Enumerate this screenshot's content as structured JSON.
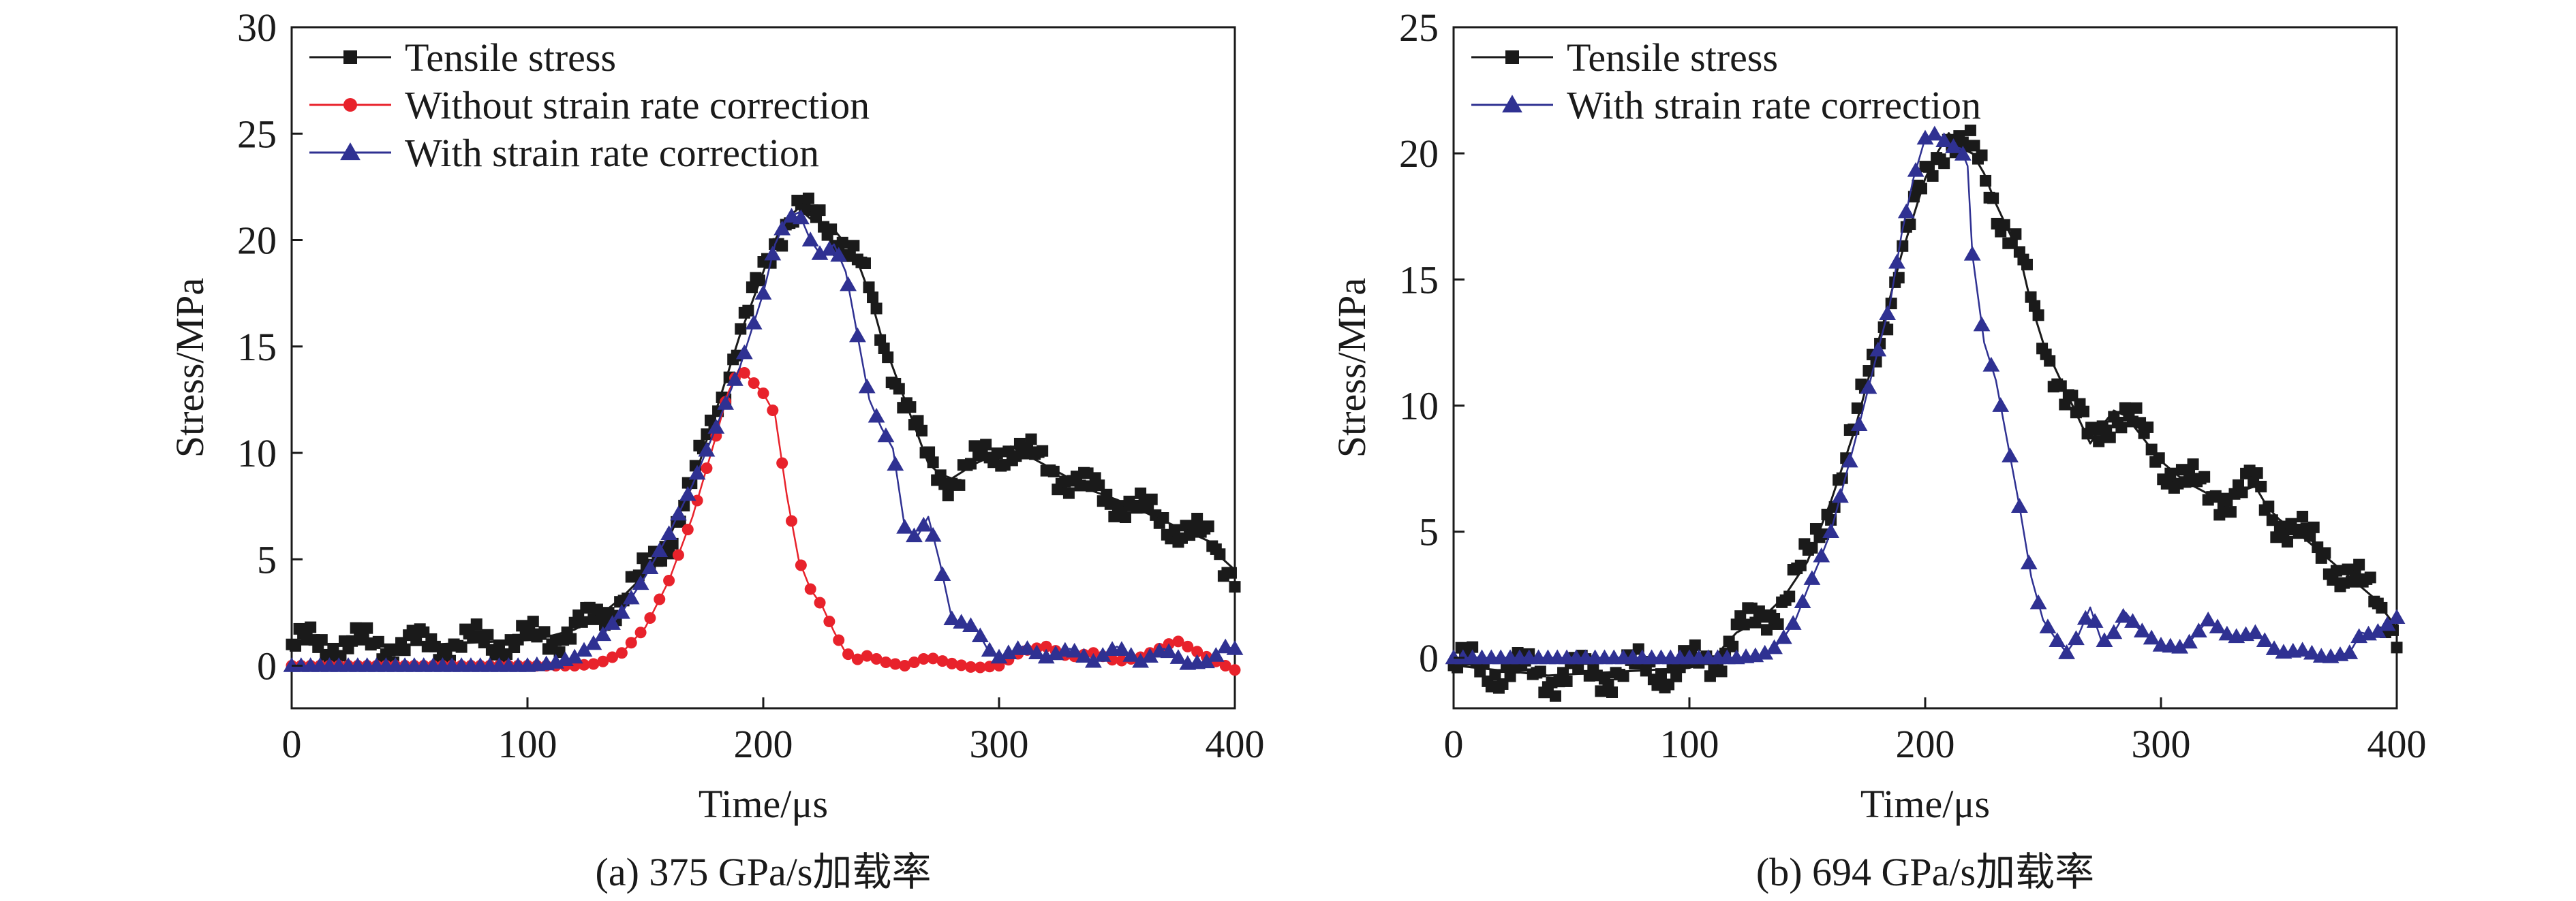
{
  "chart_data": [
    {
      "type": "line",
      "caption": "(a) 375 GPa/s加载率",
      "xlabel": "Time/μs",
      "ylabel": "Stress/MPa",
      "xlim": [
        0,
        400
      ],
      "ylim": [
        -2,
        30
      ],
      "xticks": [
        0,
        100,
        200,
        300,
        400
      ],
      "yticks": [
        0,
        5,
        10,
        15,
        20,
        25,
        30
      ],
      "xtick_labels": [
        "0",
        "100",
        "200",
        "300",
        "400"
      ],
      "ytick_labels": [
        "0",
        "5",
        "10",
        "15",
        "20",
        "25",
        "30"
      ],
      "grid": false,
      "legend_position": "top-left",
      "series": [
        {
          "name": "Tensile stress",
          "color": "#1a1a1a",
          "marker": "square",
          "points": [
            [
              0,
              1.0
            ],
            [
              20,
              1.0
            ],
            [
              40,
              1.0
            ],
            [
              60,
              1.0
            ],
            [
              80,
              1.1
            ],
            [
              100,
              1.2
            ],
            [
              110,
              1.4
            ],
            [
              120,
              1.7
            ],
            [
              130,
              2.3
            ],
            [
              140,
              3.2
            ],
            [
              150,
              4.3
            ],
            [
              160,
              6.0
            ],
            [
              170,
              8.5
            ],
            [
              180,
              12.0
            ],
            [
              190,
              15.5
            ],
            [
              200,
              18.5
            ],
            [
              205,
              20.0
            ],
            [
              210,
              21.0
            ],
            [
              215,
              21.5
            ],
            [
              220,
              21.0
            ],
            [
              225,
              20.8
            ],
            [
              230,
              20.5
            ],
            [
              235,
              19.8
            ],
            [
              240,
              19.0
            ],
            [
              245,
              17.5
            ],
            [
              250,
              15.5
            ],
            [
              255,
              14.0
            ],
            [
              260,
              12.5
            ],
            [
              265,
              11.0
            ],
            [
              270,
              9.5
            ],
            [
              275,
              9.0
            ],
            [
              280,
              8.8
            ],
            [
              290,
              9.5
            ],
            [
              300,
              10.0
            ],
            [
              305,
              10.3
            ],
            [
              310,
              10.0
            ],
            [
              320,
              9.4
            ],
            [
              330,
              8.8
            ],
            [
              340,
              8.2
            ],
            [
              350,
              7.8
            ],
            [
              360,
              7.3
            ],
            [
              370,
              6.8
            ],
            [
              380,
              6.3
            ],
            [
              390,
              5.8
            ],
            [
              395,
              5.0
            ],
            [
              400,
              4.5
            ]
          ]
        },
        {
          "name": "Without strain rate correction",
          "color": "#e8222b",
          "marker": "circle",
          "points": [
            [
              0,
              0
            ],
            [
              50,
              0
            ],
            [
              100,
              0
            ],
            [
              120,
              0
            ],
            [
              130,
              0.1
            ],
            [
              140,
              0.6
            ],
            [
              150,
              1.8
            ],
            [
              160,
              4.0
            ],
            [
              170,
              7.0
            ],
            [
              180,
              10.8
            ],
            [
              185,
              12.8
            ],
            [
              190,
              14.0
            ],
            [
              195,
              13.4
            ],
            [
              200,
              12.8
            ],
            [
              205,
              11.8
            ],
            [
              210,
              8.0
            ],
            [
              215,
              5.0
            ],
            [
              220,
              3.6
            ],
            [
              225,
              2.8
            ],
            [
              230,
              1.6
            ],
            [
              235,
              0.6
            ],
            [
              240,
              0.3
            ],
            [
              245,
              0.5
            ],
            [
              250,
              0.2
            ],
            [
              260,
              0.0
            ],
            [
              270,
              0.4
            ],
            [
              280,
              0.1
            ],
            [
              290,
              -0.1
            ],
            [
              300,
              0.0
            ],
            [
              310,
              0.7
            ],
            [
              320,
              0.9
            ],
            [
              330,
              0.4
            ],
            [
              340,
              0.6
            ],
            [
              350,
              0.2
            ],
            [
              360,
              0.4
            ],
            [
              370,
              0.9
            ],
            [
              375,
              1.2
            ],
            [
              380,
              0.9
            ],
            [
              390,
              0.3
            ],
            [
              400,
              -0.2
            ]
          ]
        },
        {
          "name": "With strain rate correction",
          "color": "#2f3192",
          "marker": "triangle",
          "points": [
            [
              0,
              0
            ],
            [
              50,
              0
            ],
            [
              100,
              0
            ],
            [
              110,
              0.1
            ],
            [
              120,
              0.4
            ],
            [
              130,
              1.2
            ],
            [
              140,
              2.5
            ],
            [
              150,
              4.2
            ],
            [
              160,
              6.2
            ],
            [
              170,
              8.5
            ],
            [
              180,
              11.2
            ],
            [
              190,
              14.0
            ],
            [
              200,
              17.5
            ],
            [
              205,
              19.8
            ],
            [
              210,
              21.0
            ],
            [
              215,
              21.3
            ],
            [
              220,
              20.0
            ],
            [
              225,
              19.2
            ],
            [
              230,
              19.8
            ],
            [
              235,
              18.5
            ],
            [
              240,
              15.5
            ],
            [
              245,
              12.5
            ],
            [
              250,
              11.2
            ],
            [
              255,
              10.2
            ],
            [
              260,
              6.5
            ],
            [
              265,
              6.0
            ],
            [
              270,
              7.0
            ],
            [
              275,
              4.8
            ],
            [
              280,
              2.2
            ],
            [
              290,
              1.8
            ],
            [
              295,
              0.8
            ],
            [
              300,
              0.4
            ],
            [
              310,
              0.9
            ],
            [
              320,
              0.4
            ],
            [
              330,
              0.8
            ],
            [
              340,
              0.2
            ],
            [
              350,
              0.9
            ],
            [
              360,
              0.2
            ],
            [
              370,
              0.8
            ],
            [
              380,
              0.1
            ],
            [
              390,
              0.2
            ],
            [
              395,
              0.9
            ],
            [
              400,
              0.8
            ]
          ]
        }
      ]
    },
    {
      "type": "line",
      "caption": "(b) 694 GPa/s加载率",
      "xlabel": "Time/μs",
      "ylabel": "Stress/MPa",
      "xlim": [
        0,
        400
      ],
      "ylim": [
        -2,
        25
      ],
      "xticks": [
        0,
        100,
        200,
        300,
        400
      ],
      "yticks": [
        0,
        5,
        10,
        15,
        20,
        25
      ],
      "xtick_labels": [
        "0",
        "100",
        "200",
        "300",
        "400"
      ],
      "ytick_labels": [
        "0",
        "5",
        "10",
        "15",
        "20",
        "25"
      ],
      "grid": false,
      "legend_position": "top-left",
      "series": [
        {
          "name": "Tensile stress",
          "color": "#1a1a1a",
          "marker": "square",
          "points": [
            [
              0,
              -0.3
            ],
            [
              20,
              -0.5
            ],
            [
              40,
              -0.7
            ],
            [
              60,
              -0.6
            ],
            [
              80,
              -0.5
            ],
            [
              100,
              -0.4
            ],
            [
              110,
              -0.1
            ],
            [
              115,
              0.5
            ],
            [
              120,
              1.0
            ],
            [
              130,
              1.5
            ],
            [
              140,
              2.4
            ],
            [
              150,
              3.8
            ],
            [
              160,
              6.2
            ],
            [
              170,
              9.0
            ],
            [
              180,
              12.5
            ],
            [
              190,
              16.0
            ],
            [
              200,
              19.0
            ],
            [
              205,
              20.0
            ],
            [
              210,
              20.8
            ],
            [
              215,
              20.2
            ],
            [
              220,
              20.0
            ],
            [
              225,
              19.2
            ],
            [
              230,
              18.0
            ],
            [
              235,
              17.0
            ],
            [
              240,
              16.0
            ],
            [
              245,
              14.0
            ],
            [
              250,
              12.5
            ],
            [
              255,
              11.5
            ],
            [
              260,
              10.5
            ],
            [
              265,
              9.5
            ],
            [
              270,
              8.5
            ],
            [
              275,
              9.2
            ],
            [
              280,
              9.8
            ],
            [
              285,
              9.6
            ],
            [
              290,
              9.0
            ],
            [
              300,
              7.8
            ],
            [
              310,
              7.0
            ],
            [
              320,
              6.5
            ],
            [
              330,
              6.5
            ],
            [
              340,
              6.8
            ],
            [
              345,
              6.0
            ],
            [
              350,
              5.5
            ],
            [
              360,
              4.8
            ],
            [
              370,
              4.0
            ],
            [
              380,
              3.2
            ],
            [
              390,
              2.4
            ],
            [
              400,
              1.2
            ]
          ]
        },
        {
          "name": "With strain rate correction",
          "color": "#2f3192",
          "marker": "triangle",
          "points": [
            [
              0,
              0
            ],
            [
              50,
              0
            ],
            [
              100,
              0
            ],
            [
              110,
              0
            ],
            [
              120,
              0
            ],
            [
              130,
              0.1
            ],
            [
              135,
              0.3
            ],
            [
              140,
              0.8
            ],
            [
              145,
              1.5
            ],
            [
              150,
              2.7
            ],
            [
              155,
              3.8
            ],
            [
              160,
              5.0
            ],
            [
              170,
              8.5
            ],
            [
              180,
              12.2
            ],
            [
              185,
              14.0
            ],
            [
              190,
              16.8
            ],
            [
              195,
              19.0
            ],
            [
              200,
              20.6
            ],
            [
              205,
              20.8
            ],
            [
              210,
              20.3
            ],
            [
              215,
              20.2
            ],
            [
              218,
              19.5
            ],
            [
              220,
              16.0
            ],
            [
              225,
              12.5
            ],
            [
              230,
              11.0
            ],
            [
              235,
              8.5
            ],
            [
              240,
              6.0
            ],
            [
              245,
              3.2
            ],
            [
              250,
              1.5
            ],
            [
              255,
              0.8
            ],
            [
              260,
              0.2
            ],
            [
              265,
              0.9
            ],
            [
              270,
              2.0
            ],
            [
              275,
              0.6
            ],
            [
              280,
              1.0
            ],
            [
              285,
              1.8
            ],
            [
              290,
              1.2
            ],
            [
              300,
              0.5
            ],
            [
              310,
              0.4
            ],
            [
              320,
              1.5
            ],
            [
              330,
              0.8
            ],
            [
              340,
              1.0
            ],
            [
              350,
              0.2
            ],
            [
              360,
              0.3
            ],
            [
              370,
              0.0
            ],
            [
              380,
              0.2
            ],
            [
              385,
              1.0
            ],
            [
              390,
              0.9
            ],
            [
              400,
              1.6
            ]
          ]
        }
      ]
    }
  ]
}
